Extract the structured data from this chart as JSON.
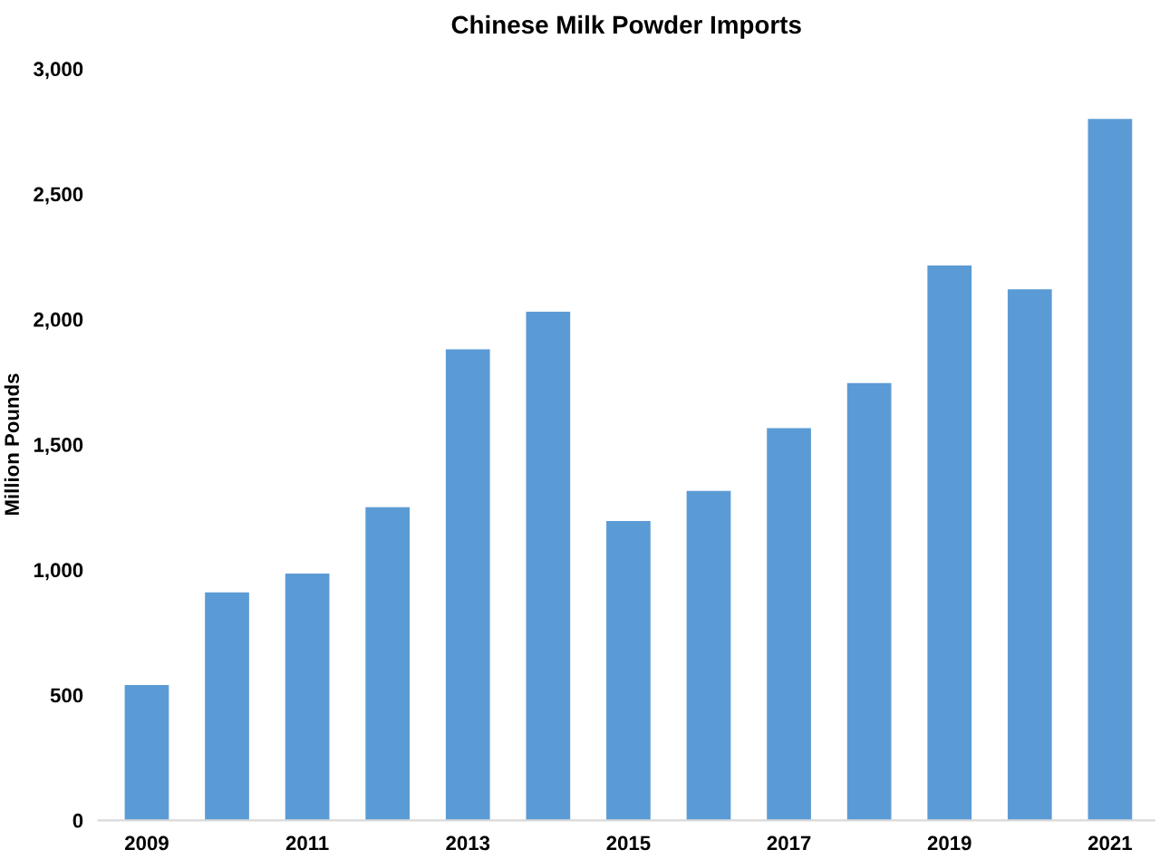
{
  "chart_data": {
    "type": "bar",
    "title": "Chinese Milk Powder Imports",
    "ylabel": "Million Pounds",
    "categories": [
      "2009",
      null,
      "2011",
      null,
      "2013",
      null,
      "2015",
      null,
      "2017",
      null,
      "2019",
      null,
      "2021"
    ],
    "values": [
      540,
      910,
      985,
      1250,
      1880,
      2030,
      1195,
      1315,
      1565,
      1745,
      2215,
      2120,
      2800
    ],
    "color": "#5b9bd5",
    "ylim": [
      0,
      3000
    ],
    "yticks": [
      {
        "value": 0,
        "label": "0"
      },
      {
        "value": 500,
        "label": "500"
      },
      {
        "value": 1000,
        "label": "1,000"
      },
      {
        "value": 1500,
        "label": "1,500"
      },
      {
        "value": 2000,
        "label": "2,000"
      },
      {
        "value": 2500,
        "label": "2,500"
      },
      {
        "value": 3000,
        "label": "3,000"
      }
    ],
    "grid": false
  }
}
